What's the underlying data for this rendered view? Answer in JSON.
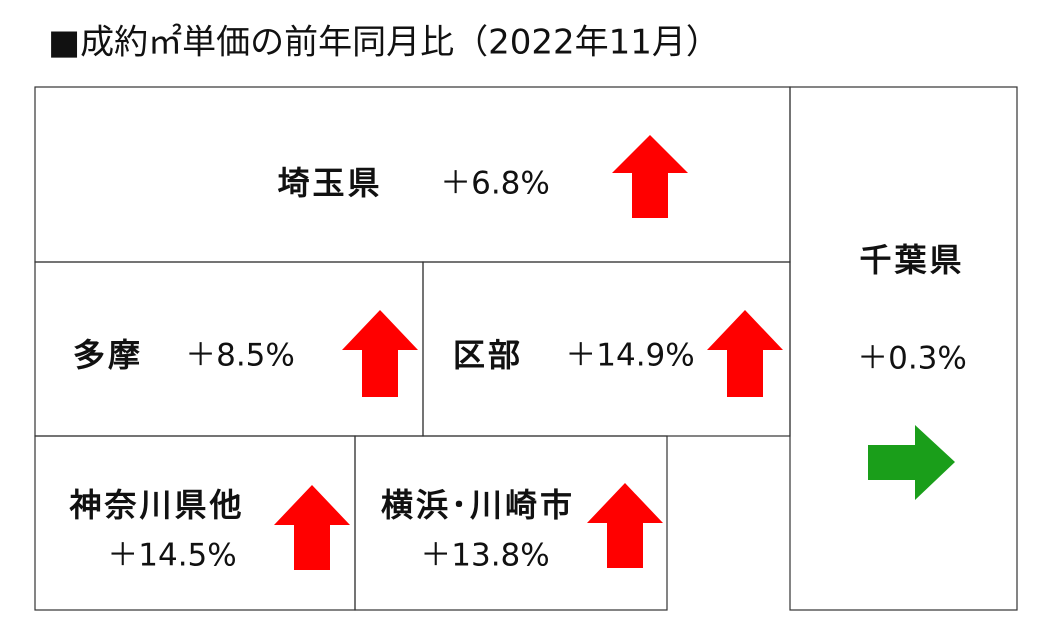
{
  "title": "■成約㎡単価の前年同月比（2022年11月）",
  "regions": [
    {
      "name": "埼玉県",
      "change": "＋6.8%"
    },
    {
      "name": "多摩",
      "change": "＋8.5%"
    },
    {
      "name": "区部",
      "change": "＋14.9%"
    },
    {
      "name": "神奈川県他",
      "change": "＋14.5%"
    },
    {
      "name": "横浜･川崎市",
      "change": "＋13.8%"
    },
    {
      "name": "千葉県",
      "change": "＋0.3%"
    }
  ]
}
